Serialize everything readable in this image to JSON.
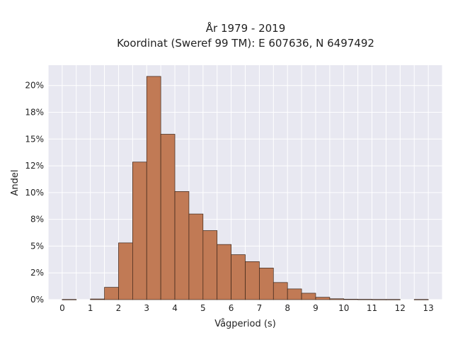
{
  "chart_data": {
    "type": "bar",
    "title": [
      "År 1979 - 2019",
      "Koordinat (Sweref 99 TM): E 607636, N 6497492"
    ],
    "xlabel": "Vågperiod (s)",
    "ylabel": "Andel",
    "xlim": [
      -0.5,
      13.5
    ],
    "ylim": [
      0,
      21.9
    ],
    "x_ticks": [
      0,
      1,
      2,
      3,
      4,
      5,
      6,
      7,
      8,
      9,
      10,
      11,
      12,
      13
    ],
    "x_tick_labels": [
      "0",
      "1",
      "2",
      "3",
      "4",
      "5",
      "6",
      "7",
      "8",
      "9",
      "10",
      "11",
      "12",
      "13"
    ],
    "y_ticks": [
      0,
      2.5,
      5,
      7.5,
      10,
      12.5,
      15,
      17.5,
      20
    ],
    "y_tick_labels": [
      "0%",
      "2%",
      "5%",
      "8%",
      "10%",
      "12%",
      "15%",
      "18%",
      "20%"
    ],
    "grid": true,
    "bin_width": 0.5,
    "bins": [
      {
        "start": 0.0,
        "value": 0.02
      },
      {
        "start": 1.0,
        "value": 0.06
      },
      {
        "start": 1.5,
        "value": 1.15
      },
      {
        "start": 2.0,
        "value": 5.3
      },
      {
        "start": 2.5,
        "value": 12.85
      },
      {
        "start": 3.0,
        "value": 20.85
      },
      {
        "start": 3.5,
        "value": 15.45
      },
      {
        "start": 4.0,
        "value": 10.1
      },
      {
        "start": 4.5,
        "value": 8.0
      },
      {
        "start": 5.0,
        "value": 6.45
      },
      {
        "start": 5.5,
        "value": 5.15
      },
      {
        "start": 6.0,
        "value": 4.2
      },
      {
        "start": 6.5,
        "value": 3.55
      },
      {
        "start": 7.0,
        "value": 2.95
      },
      {
        "start": 7.5,
        "value": 1.6
      },
      {
        "start": 8.0,
        "value": 1.0
      },
      {
        "start": 8.5,
        "value": 0.6
      },
      {
        "start": 9.0,
        "value": 0.22
      },
      {
        "start": 9.5,
        "value": 0.08
      },
      {
        "start": 10.0,
        "value": 0.04
      },
      {
        "start": 10.5,
        "value": 0.03
      },
      {
        "start": 11.0,
        "value": 0.02
      },
      {
        "start": 11.5,
        "value": 0.02
      },
      {
        "start": 12.5,
        "value": 0.02
      }
    ],
    "colors": {
      "bar_fill": "#c17a55",
      "bar_edge": "#3a2418",
      "plot_background": "#e8e8f1",
      "grid": "#ffffff"
    }
  }
}
